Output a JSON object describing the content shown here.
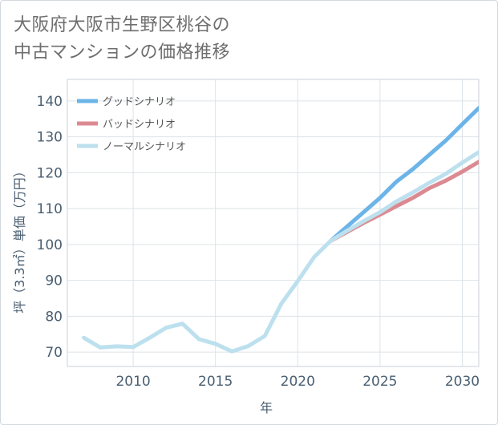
{
  "title_lines": [
    "大阪府大阪市生野区桃谷の",
    "中古マンションの価格推移"
  ],
  "chart_data": {
    "type": "line",
    "title": "大阪府大阪市生野区桃谷の中古マンションの価格推移",
    "xlabel": "年",
    "ylabel": "坪（3.3㎡）単価（万円）",
    "xlim": [
      2006,
      2031
    ],
    "ylim": [
      66,
      146
    ],
    "xticks": [
      2010,
      2015,
      2020,
      2025,
      2030
    ],
    "yticks": [
      70,
      80,
      90,
      100,
      110,
      120,
      130,
      140
    ],
    "grid": true,
    "legend_position": "top-left",
    "series": [
      {
        "name": "グッドシナリオ",
        "color": "#6cb4e8",
        "x": [
          2022,
          2023,
          2024,
          2025,
          2026,
          2027,
          2028,
          2029,
          2030,
          2031
        ],
        "y": [
          101,
          105,
          109,
          113,
          117.5,
          121,
          125,
          129,
          133.5,
          138
        ]
      },
      {
        "name": "バッドシナリオ",
        "color": "#dc8a92",
        "x": [
          2022,
          2023,
          2024,
          2025,
          2026,
          2027,
          2028,
          2029,
          2030,
          2031
        ],
        "y": [
          101,
          103.5,
          106,
          108.3,
          110.7,
          113,
          115.7,
          117.8,
          120.3,
          123
        ]
      },
      {
        "name": "ノーマルシナリオ",
        "color": "#bde0ee",
        "x": [
          2007,
          2008,
          2009,
          2010,
          2011,
          2012,
          2013,
          2014,
          2015,
          2016,
          2017,
          2018,
          2019,
          2020,
          2021,
          2022,
          2023,
          2024,
          2025,
          2026,
          2027,
          2028,
          2029,
          2030,
          2031
        ],
        "y": [
          74,
          71.3,
          71.6,
          71.4,
          74,
          76.8,
          77.9,
          73.6,
          72.3,
          70.2,
          71.7,
          74.5,
          83.5,
          89.8,
          96.5,
          101,
          103.8,
          106.5,
          109,
          112,
          114.5,
          117.2,
          119.7,
          122.8,
          125.7
        ]
      }
    ]
  }
}
